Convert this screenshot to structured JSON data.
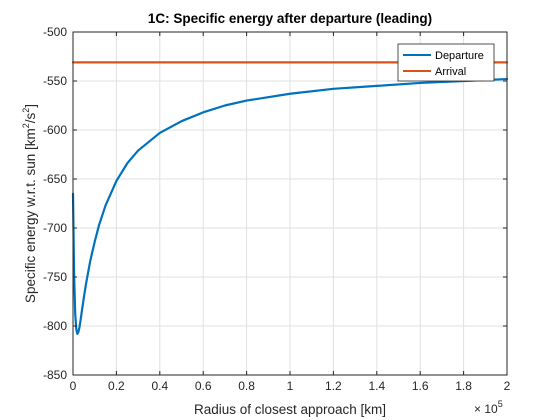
{
  "chart_data": {
    "type": "line",
    "title": "1C: Specific energy after departure (leading)",
    "xlabel": "Radius of closest approach [km]",
    "ylabel_main": "Specific energy w.r.t. sun [km",
    "ylabel_sup1": "2",
    "ylabel_mid": "/s",
    "ylabel_sup2": "2",
    "ylabel_end": "]",
    "x_exponent_base": "× 10",
    "x_exponent_power": "5",
    "xlim": [
      0,
      200000
    ],
    "ylim": [
      -850,
      -500
    ],
    "xticks": [
      0,
      20000,
      40000,
      60000,
      80000,
      100000,
      120000,
      140000,
      160000,
      180000,
      200000
    ],
    "xtick_labels": [
      "0",
      "0.2",
      "0.4",
      "0.6",
      "0.8",
      "1",
      "1.2",
      "1.4",
      "1.6",
      "1.8",
      "2"
    ],
    "yticks": [
      -850,
      -800,
      -750,
      -700,
      -650,
      -600,
      -550,
      -500
    ],
    "ytick_labels": [
      "-850",
      "-800",
      "-750",
      "-700",
      "-650",
      "-600",
      "-550",
      "-500"
    ],
    "grid": true,
    "legend_position": "top-right",
    "series": [
      {
        "name": "Departure",
        "color": "#0072bd",
        "x": [
          0,
          500,
          1000,
          1500,
          2000,
          2500,
          3000,
          3500,
          4000,
          5000,
          6000,
          8000,
          10000,
          12000,
          15000,
          20000,
          25000,
          30000,
          40000,
          50000,
          60000,
          70000,
          80000,
          100000,
          120000,
          140000,
          160000,
          180000,
          200000
        ],
        "y": [
          -665,
          -745,
          -787,
          -803,
          -808,
          -806,
          -801,
          -794,
          -786,
          -771,
          -757,
          -733,
          -714,
          -697,
          -677,
          -652,
          -634,
          -621,
          -603,
          -591,
          -582,
          -575,
          -570,
          -563,
          -558,
          -555,
          -552,
          -550,
          -548
        ]
      },
      {
        "name": "Arrival",
        "color": "#d95319",
        "x": [
          0,
          200000
        ],
        "y": [
          -531,
          -531
        ]
      }
    ]
  }
}
